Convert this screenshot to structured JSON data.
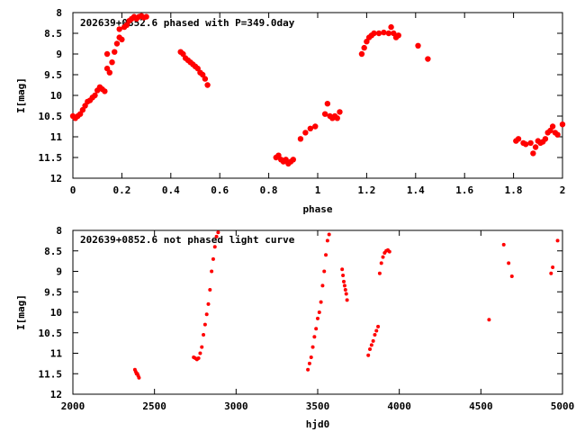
{
  "chart_data": [
    {
      "type": "scatter",
      "title": "202639+0852.6 phased with P=349.0day",
      "xlabel": "phase",
      "ylabel": "I[mag]",
      "xlim": [
        0,
        2
      ],
      "ylim": [
        12,
        8
      ],
      "y_inverted": true,
      "grid": false,
      "xticks": [
        "0",
        "0.2",
        "0.4",
        "0.6",
        "0.8",
        "1",
        "1.2",
        "1.4",
        "1.6",
        "1.8",
        "2"
      ],
      "yticks": [
        "8",
        "8.5",
        "9",
        "9.5",
        "10",
        "10.5",
        "11",
        "11.5",
        "12"
      ],
      "marker_color": "#ff0000",
      "series": [
        {
          "x": [
            0.0,
            0.01,
            0.02,
            0.03,
            0.04,
            0.05,
            0.06,
            0.07,
            0.08,
            0.09,
            0.1,
            0.11,
            0.12,
            0.13,
            0.14,
            0.14,
            0.15,
            0.16,
            0.17,
            0.18,
            0.19,
            0.19,
            0.2,
            0.21,
            0.22,
            0.23,
            0.24,
            0.25,
            0.26,
            0.27,
            0.28,
            0.29,
            0.3,
            0.44,
            0.45,
            0.46,
            0.47,
            0.48,
            0.49,
            0.5,
            0.51,
            0.52,
            0.53,
            0.54,
            0.55,
            0.83,
            0.84,
            0.85,
            0.86,
            0.87,
            0.88,
            0.89,
            0.9,
            0.93,
            0.95,
            0.97,
            0.99,
            1.03,
            1.04,
            1.05,
            1.06,
            1.07,
            1.08,
            1.09,
            1.18,
            1.19,
            1.2,
            1.21,
            1.22,
            1.23,
            1.25,
            1.27,
            1.29,
            1.3,
            1.31,
            1.32,
            1.33,
            1.41,
            1.45,
            1.81,
            1.82,
            1.84,
            1.85,
            1.87,
            1.88,
            1.89,
            1.9,
            1.91,
            1.92,
            1.93,
            1.94,
            1.95,
            1.96,
            1.97,
            1.98,
            2.0
          ],
          "y": [
            10.5,
            10.55,
            10.5,
            10.45,
            10.35,
            10.25,
            10.15,
            10.12,
            10.05,
            10.0,
            9.88,
            9.8,
            9.85,
            9.9,
            9.35,
            9.0,
            9.45,
            9.2,
            8.95,
            8.75,
            8.6,
            8.4,
            8.65,
            8.35,
            8.3,
            8.2,
            8.15,
            8.1,
            8.15,
            8.1,
            8.08,
            8.12,
            8.1,
            8.95,
            9.0,
            9.1,
            9.15,
            9.2,
            9.25,
            9.3,
            9.35,
            9.45,
            9.5,
            9.6,
            9.75,
            11.5,
            11.45,
            11.55,
            11.6,
            11.55,
            11.65,
            11.6,
            11.55,
            11.05,
            10.9,
            10.8,
            10.75,
            10.45,
            10.2,
            10.5,
            10.55,
            10.5,
            10.55,
            10.4,
            9.0,
            8.85,
            8.7,
            8.6,
            8.55,
            8.5,
            8.5,
            8.48,
            8.5,
            8.35,
            8.5,
            8.6,
            8.55,
            8.8,
            9.12,
            11.1,
            11.05,
            11.15,
            11.18,
            11.15,
            11.4,
            11.25,
            11.1,
            11.15,
            11.12,
            11.05,
            10.9,
            10.85,
            10.75,
            10.9,
            10.95,
            10.7
          ]
        }
      ]
    },
    {
      "type": "scatter",
      "title": "202639+0852.6 not phased light curve",
      "xlabel": "hjd0",
      "ylabel": "I[mag]",
      "xlim": [
        2000,
        5000
      ],
      "ylim": [
        12,
        8
      ],
      "y_inverted": true,
      "grid": false,
      "xticks": [
        "2000",
        "2500",
        "3000",
        "3500",
        "4000",
        "4500",
        "5000"
      ],
      "yticks": [
        "8",
        "8.5",
        "9",
        "9.5",
        "10",
        "10.5",
        "11",
        "11.5",
        "12"
      ],
      "marker_color": "#ff0000",
      "series": [
        {
          "x": [
            2380,
            2385,
            2390,
            2395,
            2400,
            2405,
            2740,
            2750,
            2760,
            2770,
            2780,
            2790,
            2800,
            2810,
            2820,
            2830,
            2840,
            2850,
            2860,
            2870,
            2880,
            2890,
            3440,
            3450,
            3460,
            3470,
            3480,
            3490,
            3500,
            3510,
            3520,
            3530,
            3540,
            3550,
            3560,
            3570,
            3650,
            3655,
            3660,
            3665,
            3670,
            3675,
            3680,
            3810,
            3820,
            3830,
            3840,
            3850,
            3860,
            3870,
            3880,
            3890,
            3900,
            3910,
            3920,
            3930,
            3940,
            4550,
            4640,
            4670,
            4690,
            4930,
            4940,
            4970
          ],
          "y": [
            11.4,
            11.45,
            11.5,
            11.5,
            11.55,
            11.6,
            11.1,
            11.12,
            11.15,
            11.12,
            11.0,
            10.85,
            10.55,
            10.3,
            10.05,
            9.8,
            9.45,
            9.0,
            8.7,
            8.4,
            8.15,
            8.05,
            11.4,
            11.25,
            11.1,
            10.85,
            10.6,
            10.4,
            10.15,
            10.0,
            9.75,
            9.35,
            9.0,
            8.6,
            8.25,
            8.1,
            8.95,
            9.1,
            9.25,
            9.35,
            9.45,
            9.55,
            9.7,
            11.05,
            10.9,
            10.8,
            10.7,
            10.55,
            10.45,
            10.35,
            9.05,
            8.8,
            8.65,
            8.55,
            8.5,
            8.48,
            8.52,
            10.18,
            8.35,
            8.8,
            9.12,
            9.05,
            8.9,
            8.25
          ]
        }
      ]
    }
  ]
}
